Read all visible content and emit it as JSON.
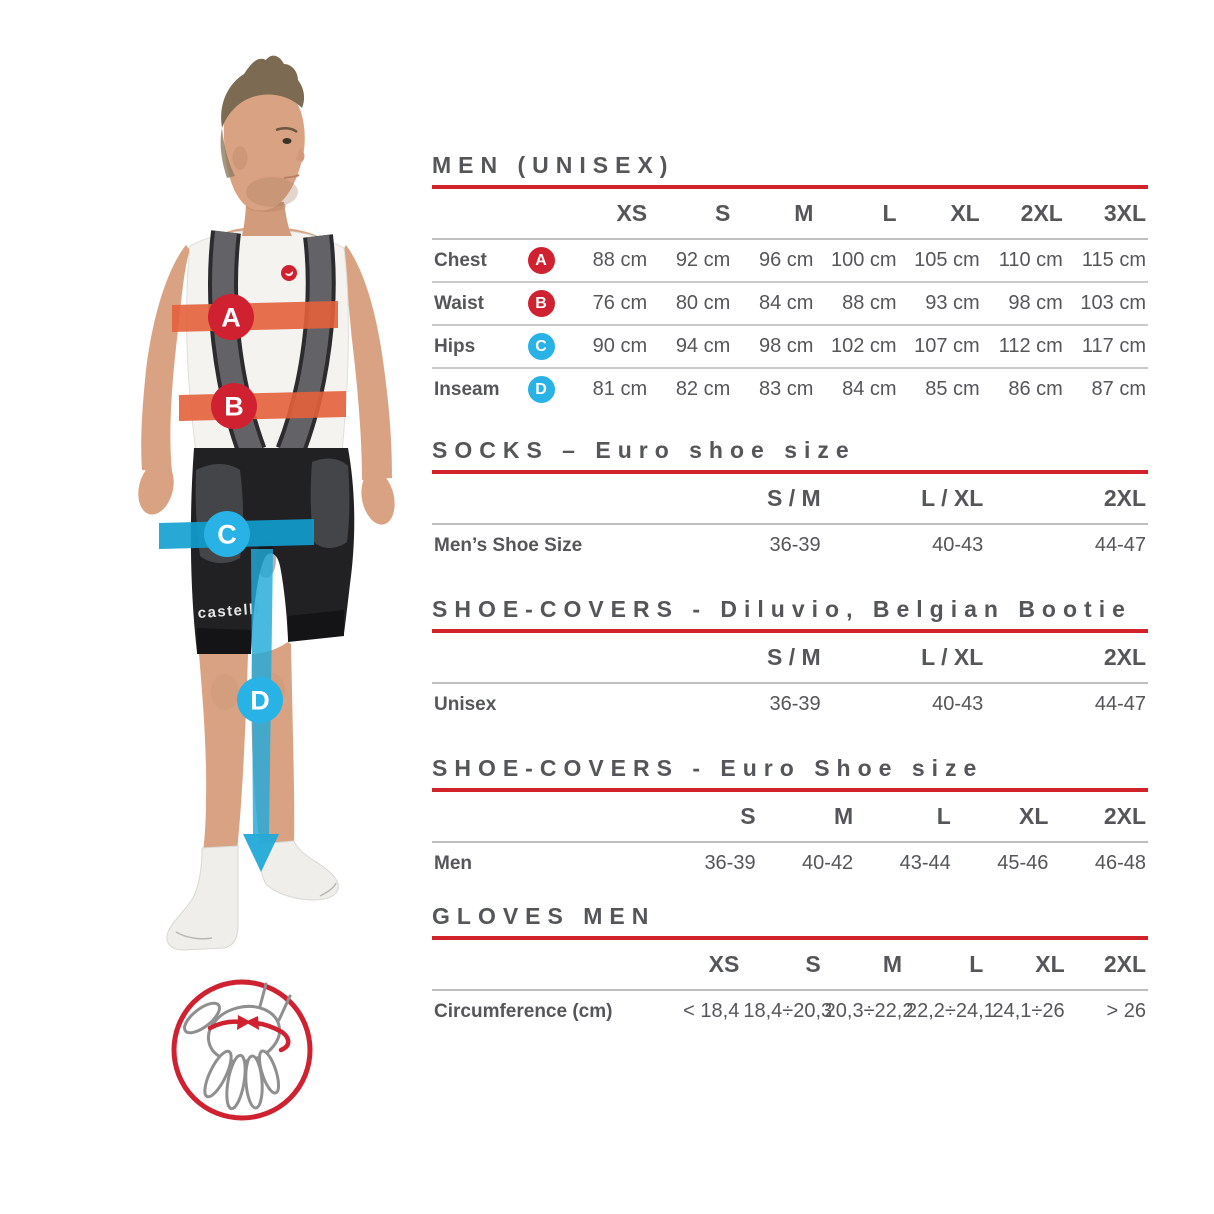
{
  "colors": {
    "accent_red": "#d2232a",
    "badge_red": "#cf2130",
    "badge_blue": "#29b2e5",
    "band_orange": "#e4613c",
    "band_blue": "#1fa9d8",
    "text_gray": "#55565a"
  },
  "figure": {
    "brand": "castelli",
    "markers": [
      {
        "letter": "A",
        "color": "#cf2130"
      },
      {
        "letter": "B",
        "color": "#cf2130"
      },
      {
        "letter": "C",
        "color": "#29b2e5"
      },
      {
        "letter": "D",
        "color": "#29b2e5"
      }
    ]
  },
  "tables": [
    {
      "title": "MEN (UNISEX)",
      "columns": [
        "XS",
        "S",
        "M",
        "L",
        "XL",
        "2XL",
        "3XL"
      ],
      "rows": [
        {
          "label": "Chest",
          "badge": "A",
          "badge_color": "#cf2130",
          "values": [
            "88 cm",
            "92 cm",
            "96 cm",
            "100 cm",
            "105 cm",
            "110 cm",
            "115 cm"
          ]
        },
        {
          "label": "Waist",
          "badge": "B",
          "badge_color": "#cf2130",
          "values": [
            "76 cm",
            "80 cm",
            "84 cm",
            "88 cm",
            "93 cm",
            "98 cm",
            "103 cm"
          ]
        },
        {
          "label": "Hips",
          "badge": "C",
          "badge_color": "#29b2e5",
          "values": [
            "90 cm",
            "94 cm",
            "98 cm",
            "102 cm",
            "107 cm",
            "112 cm",
            "117 cm"
          ]
        },
        {
          "label": "Inseam",
          "badge": "D",
          "badge_color": "#29b2e5",
          "values": [
            "81 cm",
            "82 cm",
            "83 cm",
            "84 cm",
            "85 cm",
            "86 cm",
            "87 cm"
          ]
        }
      ]
    },
    {
      "title": "SOCKS – Euro shoe size",
      "columns": [
        "S / M",
        "L / XL",
        "2XL"
      ],
      "rows": [
        {
          "label": "Men’s Shoe Size",
          "values": [
            "36-39",
            "40-43",
            "44-47"
          ]
        }
      ]
    },
    {
      "title": "SHOE-COVERS - Diluvio, Belgian Bootie",
      "columns": [
        "S / M",
        "L / XL",
        "2XL"
      ],
      "rows": [
        {
          "label": "Unisex",
          "values": [
            "36-39",
            "40-43",
            "44-47"
          ]
        }
      ]
    },
    {
      "title": "SHOE-COVERS - Euro Shoe size",
      "columns": [
        "S",
        "M",
        "L",
        "XL",
        "2XL"
      ],
      "rows": [
        {
          "label": "Men",
          "values": [
            "36-39",
            "40-42",
            "43-44",
            "45-46",
            "46-48"
          ]
        }
      ]
    },
    {
      "title": "GLOVES MEN",
      "columns": [
        "XS",
        "S",
        "M",
        "L",
        "XL",
        "2XL"
      ],
      "rows": [
        {
          "label": "Circumference (cm)",
          "values": [
            "< 18,4",
            "18,4÷20,3",
            "20,3÷22,2",
            "22,2÷24,1",
            "24,1÷26",
            "> 26"
          ]
        }
      ]
    }
  ]
}
